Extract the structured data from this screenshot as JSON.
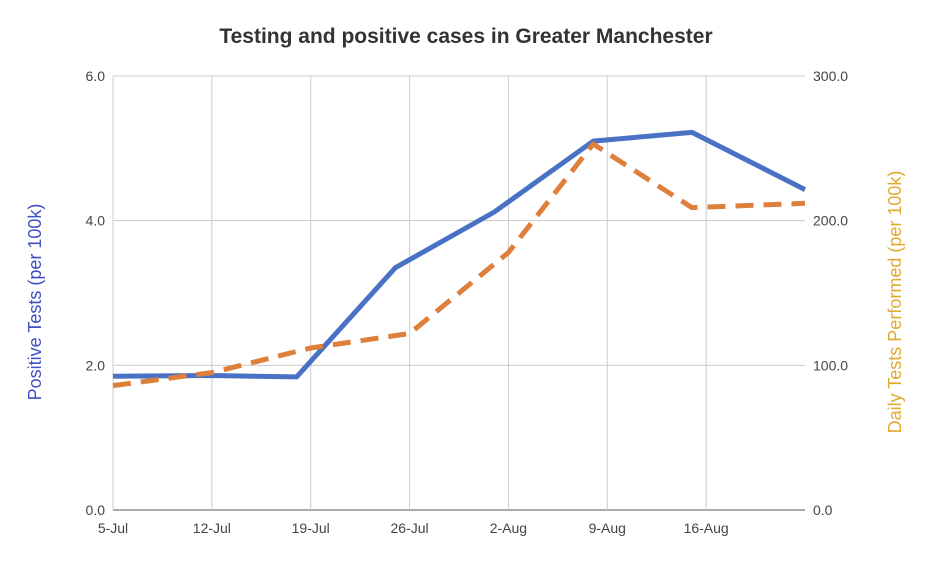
{
  "chart_data": {
    "type": "line",
    "title": "Testing and positive cases in Greater Manchester",
    "xlabel": "",
    "x_tick_labels": [
      "5-Jul",
      "12-Jul",
      "19-Jul",
      "26-Jul",
      "2-Aug",
      "9-Aug",
      "16-Aug"
    ],
    "x_domain": [
      0,
      49
    ],
    "ylabel_left": "Positive Tests (per 100k)",
    "ylabel_right": "Daily Tests Performed (per 100k)",
    "ylim_left": [
      0,
      6
    ],
    "ylim_right": [
      0,
      300
    ],
    "left_tick_labels": [
      "0.0",
      "2.0",
      "4.0",
      "6.0"
    ],
    "left_tick_values": [
      0,
      2,
      4,
      6
    ],
    "right_tick_labels": [
      "0.0",
      "100.0",
      "200.0",
      "300.0"
    ],
    "right_tick_values": [
      0,
      100,
      200,
      300
    ],
    "colors": {
      "positive": "#4a72c4",
      "daily": "#df7f3c",
      "left_axis_label": "#3f4fc4",
      "right_axis_label": "#e3a92e",
      "grid": "#cccccc"
    },
    "series": [
      {
        "name": "Positive Tests (per 100k)",
        "axis": "left",
        "style": "solid",
        "x": [
          0,
          7,
          13,
          20,
          27,
          34,
          41,
          49
        ],
        "values": [
          1.85,
          1.86,
          1.84,
          3.35,
          4.12,
          5.1,
          5.22,
          4.43
        ]
      },
      {
        "name": "Daily Tests Performed (per 100k)",
        "axis": "right",
        "style": "dashed",
        "x": [
          0,
          7,
          14,
          21,
          28,
          34,
          41,
          49
        ],
        "values": [
          86,
          95,
          112,
          122,
          178,
          253,
          209,
          212
        ]
      }
    ]
  }
}
